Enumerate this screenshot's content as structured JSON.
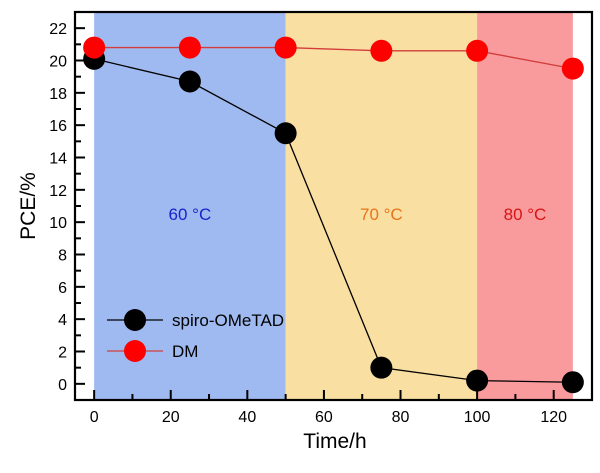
{
  "chart_data": {
    "type": "line",
    "title": "",
    "xlabel": "Time/h",
    "ylabel": "PCE/%",
    "xlim": [
      -5,
      130
    ],
    "ylim": [
      -1,
      23
    ],
    "xticks": [
      0,
      20,
      40,
      60,
      80,
      100,
      120
    ],
    "xticks_minor": [
      10,
      30,
      50,
      70,
      90,
      110
    ],
    "yticks": [
      0,
      2,
      4,
      6,
      8,
      10,
      12,
      14,
      16,
      18,
      20,
      22
    ],
    "yticks_minor": [
      1,
      3,
      5,
      7,
      9,
      11,
      13,
      15,
      17,
      19,
      21
    ],
    "grid": false,
    "x": [
      0,
      25,
      50,
      75,
      100,
      125
    ],
    "series": [
      {
        "name": "spiro-OMeTAD",
        "color": "#000000",
        "values": [
          20.1,
          18.7,
          15.5,
          1.0,
          0.2,
          0.1
        ]
      },
      {
        "name": "DM",
        "color": "#ff0000",
        "line_color": "#d23c3c",
        "values": [
          20.8,
          20.8,
          20.8,
          20.6,
          20.6,
          19.5
        ]
      }
    ],
    "regions": [
      {
        "label": "60 °C",
        "x_start": 0,
        "x_end": 50,
        "fill": "#9fbaf0",
        "label_color": "#1a23c8"
      },
      {
        "label": "70 °C",
        "x_start": 50,
        "x_end": 100,
        "fill": "#f9dfa1",
        "label_color": "#e8741c"
      },
      {
        "label": "80 °C",
        "x_start": 100,
        "x_end": 125,
        "fill": "#f99a9c",
        "label_color": "#d81414"
      }
    ],
    "region_label_y": 10.5,
    "legend": {
      "placement": "bottom-left",
      "entries": [
        "spiro-OMeTAD",
        "DM"
      ]
    }
  }
}
